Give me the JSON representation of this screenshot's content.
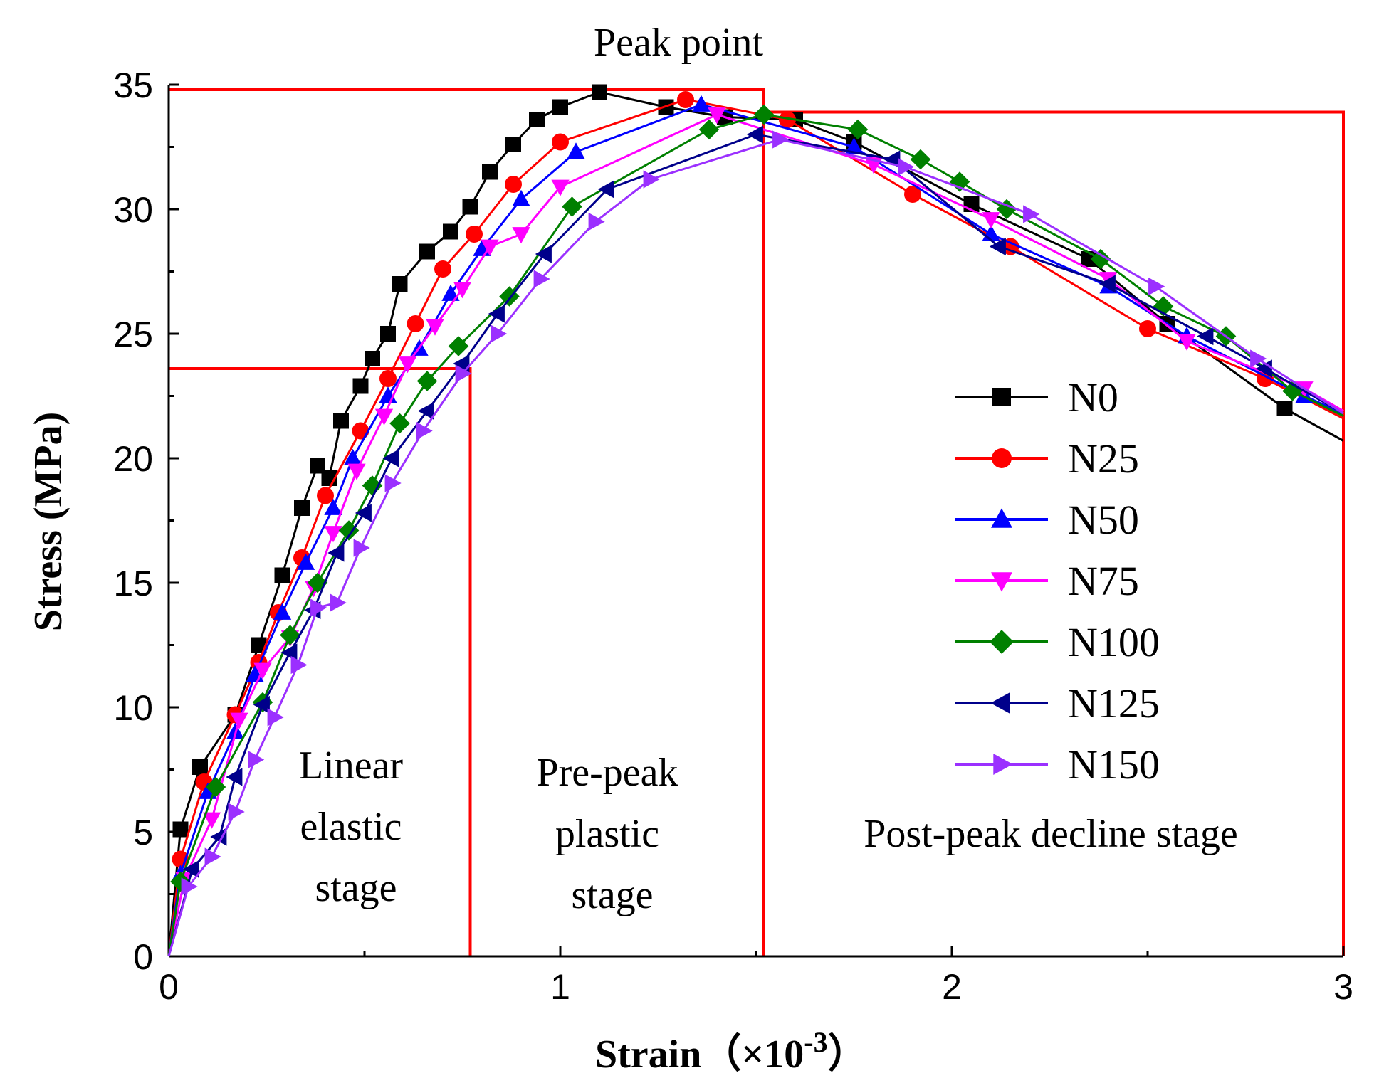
{
  "chart_data": {
    "type": "line",
    "title": "",
    "xlabel": "Strain（×10",
    "xlabel_superscript": "-3",
    "xlabel_close": "）",
    "ylabel": "Stress (MPa)",
    "xlim": [
      0,
      3
    ],
    "ylim": [
      0,
      35
    ],
    "x_ticks": [
      0,
      1,
      2,
      3
    ],
    "y_ticks": [
      0,
      5,
      10,
      15,
      20,
      25,
      30,
      35
    ],
    "grid": false,
    "legend_position": "right",
    "annotations": {
      "peak_point": "Peak point",
      "linear_stage_lines": [
        "Linear",
        "elastic",
        "stage"
      ],
      "prepeak_stage_lines": [
        "Pre-peak",
        "plastic",
        "stage"
      ],
      "postpeak_stage": "Post-peak decline stage"
    },
    "stage_boxes": [
      {
        "x_from": 0,
        "x_to": 0.77,
        "y_to": 23.6
      },
      {
        "x_from": 0,
        "x_to": 1.52,
        "y_to": 34.8
      },
      {
        "x_from": 1.52,
        "x_to": 3.0,
        "y_to": 33.9
      }
    ],
    "series": [
      {
        "name": "N0",
        "color": "#000000",
        "marker": "square",
        "x": [
          0,
          0.03,
          0.08,
          0.17,
          0.23,
          0.29,
          0.34,
          0.38,
          0.41,
          0.44,
          0.49,
          0.52,
          0.56,
          0.59,
          0.66,
          0.72,
          0.77,
          0.82,
          0.88,
          0.94,
          1.0,
          1.1,
          1.27,
          1.42,
          1.6,
          1.75,
          2.05,
          2.35,
          2.55,
          2.85,
          3.0
        ],
        "y": [
          0,
          5.1,
          7.6,
          9.7,
          12.5,
          15.3,
          18.0,
          19.7,
          19.2,
          21.5,
          22.9,
          24.0,
          25.0,
          27.0,
          28.3,
          29.1,
          30.1,
          31.5,
          32.6,
          33.6,
          34.1,
          34.7,
          34.1,
          33.7,
          33.6,
          32.7,
          30.2,
          28.0,
          25.4,
          22.0,
          20.7
        ]
      },
      {
        "name": "N25",
        "color": "#ff0000",
        "marker": "circle",
        "x": [
          0,
          0.03,
          0.09,
          0.17,
          0.23,
          0.28,
          0.34,
          0.4,
          0.49,
          0.56,
          0.63,
          0.7,
          0.78,
          0.88,
          1.0,
          1.32,
          1.58,
          1.9,
          2.15,
          2.5,
          2.8,
          3.0
        ],
        "y": [
          0,
          3.9,
          7.0,
          9.7,
          11.8,
          13.8,
          16.0,
          18.5,
          21.1,
          23.2,
          25.4,
          27.6,
          29.0,
          31.0,
          32.7,
          34.4,
          33.6,
          30.6,
          28.5,
          25.2,
          23.2,
          21.6
        ]
      },
      {
        "name": "N50",
        "color": "#0000ff",
        "marker": "triangle-up",
        "x": [
          0,
          0.03,
          0.1,
          0.17,
          0.22,
          0.29,
          0.35,
          0.42,
          0.47,
          0.56,
          0.64,
          0.72,
          0.8,
          0.9,
          1.04,
          1.36,
          1.75,
          2.1,
          2.4,
          2.6,
          2.9,
          3.0
        ],
        "y": [
          0,
          3.3,
          6.6,
          9.0,
          11.3,
          13.8,
          15.8,
          18.0,
          20.0,
          22.5,
          24.4,
          26.6,
          28.4,
          30.4,
          32.3,
          34.2,
          32.5,
          29.0,
          26.9,
          24.9,
          22.5,
          21.8
        ]
      },
      {
        "name": "N75",
        "color": "#ff00ff",
        "marker": "triangle-down",
        "x": [
          0,
          0.04,
          0.11,
          0.18,
          0.24,
          0.31,
          0.37,
          0.42,
          0.48,
          0.55,
          0.61,
          0.68,
          0.75,
          0.82,
          0.9,
          1.0,
          1.4,
          1.8,
          2.1,
          2.4,
          2.6,
          2.9,
          3.0
        ],
        "y": [
          0,
          3.1,
          5.5,
          9.5,
          11.5,
          12.8,
          14.8,
          17.0,
          19.5,
          21.7,
          23.8,
          25.3,
          26.8,
          28.5,
          29.0,
          30.9,
          33.8,
          31.8,
          29.6,
          27.2,
          24.7,
          22.8,
          21.9
        ]
      },
      {
        "name": "N100",
        "color": "#008000",
        "marker": "diamond",
        "x": [
          0,
          0.03,
          0.12,
          0.24,
          0.31,
          0.38,
          0.46,
          0.52,
          0.59,
          0.66,
          0.74,
          0.87,
          1.03,
          1.38,
          1.52,
          1.76,
          1.92,
          2.02,
          2.14,
          2.38,
          2.54,
          2.7,
          2.87,
          3.0
        ],
        "y": [
          0,
          3.0,
          6.8,
          10.2,
          12.9,
          15.0,
          17.1,
          18.9,
          21.4,
          23.1,
          24.5,
          26.5,
          30.1,
          33.2,
          33.8,
          33.2,
          32.0,
          31.1,
          30.0,
          28.0,
          26.1,
          24.9,
          22.7,
          21.7
        ]
      },
      {
        "name": "N125",
        "color": "#00008b",
        "marker": "triangle-left",
        "x": [
          0,
          0.06,
          0.13,
          0.17,
          0.24,
          0.31,
          0.37,
          0.43,
          0.5,
          0.57,
          0.66,
          0.75,
          0.84,
          0.96,
          1.12,
          1.5,
          1.85,
          2.12,
          2.4,
          2.65,
          2.8,
          3.0
        ],
        "y": [
          0,
          3.5,
          4.8,
          7.2,
          10.1,
          12.2,
          13.9,
          16.2,
          17.8,
          20.0,
          21.9,
          23.8,
          25.8,
          28.2,
          30.8,
          33.0,
          32.0,
          28.5,
          27.0,
          24.9,
          23.6,
          21.8
        ]
      },
      {
        "name": "N150",
        "color": "#9b30ff",
        "marker": "triangle-right",
        "x": [
          0,
          0.05,
          0.11,
          0.17,
          0.22,
          0.27,
          0.33,
          0.38,
          0.43,
          0.49,
          0.57,
          0.65,
          0.75,
          0.84,
          0.95,
          1.09,
          1.23,
          1.56,
          1.88,
          2.2,
          2.52,
          2.78,
          3.0
        ],
        "y": [
          0,
          2.8,
          4.0,
          5.8,
          7.9,
          9.6,
          11.7,
          14.0,
          14.2,
          16.4,
          19.0,
          21.1,
          23.4,
          25.0,
          27.2,
          29.5,
          31.2,
          32.8,
          31.7,
          29.8,
          26.9,
          24.0,
          21.8
        ]
      }
    ]
  }
}
